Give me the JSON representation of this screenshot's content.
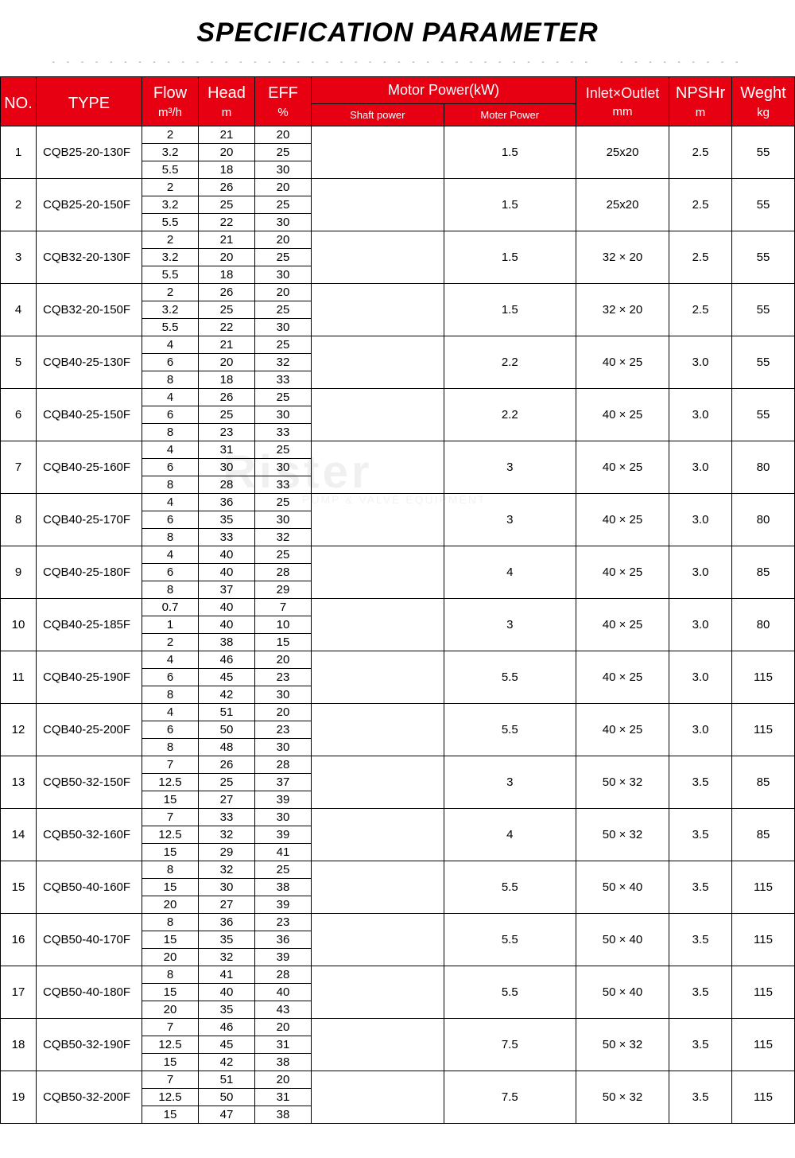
{
  "title": "SPECIFICATION PARAMETER",
  "headers": {
    "no": "NO.",
    "type": "TYPE",
    "flow_main": "Flow",
    "flow_unit": "m³/h",
    "head_main": "Head",
    "head_unit": "m",
    "eff_main": "EFF",
    "eff_unit": "%",
    "motor_main": "Motor Power(kW)",
    "shaft_sub": "Shaft power",
    "mpow_sub": "Moter Power",
    "inout_main": "Inlet×Outlet",
    "inout_unit": "mm",
    "npshr_main": "NPSHr",
    "npshr_unit": "m",
    "weight_main": "Weght",
    "weight_unit": "kg"
  },
  "rows": [
    {
      "no": "1",
      "type": "CQB25-20-130F",
      "flow": [
        "2",
        "3.2",
        "5.5"
      ],
      "head": [
        "21",
        "20",
        "18"
      ],
      "eff": [
        "20",
        "25",
        "30"
      ],
      "shaft": "",
      "mpow": "1.5",
      "inout": "25x20",
      "npshr": "2.5",
      "weight": "55"
    },
    {
      "no": "2",
      "type": "CQB25-20-150F",
      "flow": [
        "2",
        "3.2",
        "5.5"
      ],
      "head": [
        "26",
        "25",
        "22"
      ],
      "eff": [
        "20",
        "25",
        "30"
      ],
      "shaft": "",
      "mpow": "1.5",
      "inout": "25x20",
      "npshr": "2.5",
      "weight": "55"
    },
    {
      "no": "3",
      "type": "CQB32-20-130F",
      "flow": [
        "2",
        "3.2",
        "5.5"
      ],
      "head": [
        "21",
        "20",
        "18"
      ],
      "eff": [
        "20",
        "25",
        "30"
      ],
      "shaft": "",
      "mpow": "1.5",
      "inout": "32 × 20",
      "npshr": "2.5",
      "weight": "55"
    },
    {
      "no": "4",
      "type": "CQB32-20-150F",
      "flow": [
        "2",
        "3.2",
        "5.5"
      ],
      "head": [
        "26",
        "25",
        "22"
      ],
      "eff": [
        "20",
        "25",
        "30"
      ],
      "shaft": "",
      "mpow": "1.5",
      "inout": "32 × 20",
      "npshr": "2.5",
      "weight": "55"
    },
    {
      "no": "5",
      "type": "CQB40-25-130F",
      "flow": [
        "4",
        "6",
        "8"
      ],
      "head": [
        "21",
        "20",
        "18"
      ],
      "eff": [
        "25",
        "32",
        "33"
      ],
      "shaft": "",
      "mpow": "2.2",
      "inout": "40 × 25",
      "npshr": "3.0",
      "weight": "55"
    },
    {
      "no": "6",
      "type": "CQB40-25-150F",
      "flow": [
        "4",
        "6",
        "8"
      ],
      "head": [
        "26",
        "25",
        "23"
      ],
      "eff": [
        "25",
        "30",
        "33"
      ],
      "shaft": "",
      "mpow": "2.2",
      "inout": "40 × 25",
      "npshr": "3.0",
      "weight": "55"
    },
    {
      "no": "7",
      "type": "CQB40-25-160F",
      "flow": [
        "4",
        "6",
        "8"
      ],
      "head": [
        "31",
        "30",
        "28"
      ],
      "eff": [
        "25",
        "30",
        "33"
      ],
      "shaft": "",
      "mpow": "3",
      "inout": "40 × 25",
      "npshr": "3.0",
      "weight": "80"
    },
    {
      "no": "8",
      "type": "CQB40-25-170F",
      "flow": [
        "4",
        "6",
        "8"
      ],
      "head": [
        "36",
        "35",
        "33"
      ],
      "eff": [
        "25",
        "30",
        "32"
      ],
      "shaft": "",
      "mpow": "3",
      "inout": "40 × 25",
      "npshr": "3.0",
      "weight": "80"
    },
    {
      "no": "9",
      "type": "CQB40-25-180F",
      "flow": [
        "4",
        "6",
        "8"
      ],
      "head": [
        "40",
        "40",
        "37"
      ],
      "eff": [
        "25",
        "28",
        "29"
      ],
      "shaft": "",
      "mpow": "4",
      "inout": "40 × 25",
      "npshr": "3.0",
      "weight": "85"
    },
    {
      "no": "10",
      "type": "CQB40-25-185F",
      "flow": [
        "0.7",
        "1",
        "2"
      ],
      "head": [
        "40",
        "40",
        "38"
      ],
      "eff": [
        "7",
        "10",
        "15"
      ],
      "shaft": "",
      "mpow": "3",
      "inout": "40 × 25",
      "npshr": "3.0",
      "weight": "80"
    },
    {
      "no": "11",
      "type": "CQB40-25-190F",
      "flow": [
        "4",
        "6",
        "8"
      ],
      "head": [
        "46",
        "45",
        "42"
      ],
      "eff": [
        "20",
        "23",
        "30"
      ],
      "shaft": "",
      "mpow": "5.5",
      "inout": "40 × 25",
      "npshr": "3.0",
      "weight": "115"
    },
    {
      "no": "12",
      "type": "CQB40-25-200F",
      "flow": [
        "4",
        "6",
        "8"
      ],
      "head": [
        "51",
        "50",
        "48"
      ],
      "eff": [
        "20",
        "23",
        "30"
      ],
      "shaft": "",
      "mpow": "5.5",
      "inout": "40 × 25",
      "npshr": "3.0",
      "weight": "115"
    },
    {
      "no": "13",
      "type": "CQB50-32-150F",
      "flow": [
        "7",
        "12.5",
        "15"
      ],
      "head": [
        "26",
        "25",
        "27"
      ],
      "eff": [
        "28",
        "37",
        "39"
      ],
      "shaft": "",
      "mpow": "3",
      "inout": "50 × 32",
      "npshr": "3.5",
      "weight": "85"
    },
    {
      "no": "14",
      "type": "CQB50-32-160F",
      "flow": [
        "7",
        "12.5",
        "15"
      ],
      "head": [
        "33",
        "32",
        "29"
      ],
      "eff": [
        "30",
        "39",
        "41"
      ],
      "shaft": "",
      "mpow": "4",
      "inout": "50 × 32",
      "npshr": "3.5",
      "weight": "85"
    },
    {
      "no": "15",
      "type": "CQB50-40-160F",
      "flow": [
        "8",
        "15",
        "20"
      ],
      "head": [
        "32",
        "30",
        "27"
      ],
      "eff": [
        "25",
        "38",
        "39"
      ],
      "shaft": "",
      "mpow": "5.5",
      "inout": "50 × 40",
      "npshr": "3.5",
      "weight": "115"
    },
    {
      "no": "16",
      "type": "CQB50-40-170F",
      "flow": [
        "8",
        "15",
        "20"
      ],
      "head": [
        "36",
        "35",
        "32"
      ],
      "eff": [
        "23",
        "36",
        "39"
      ],
      "shaft": "",
      "mpow": "5.5",
      "inout": "50 × 40",
      "npshr": "3.5",
      "weight": "115"
    },
    {
      "no": "17",
      "type": "CQB50-40-180F",
      "flow": [
        "8",
        "15",
        "20"
      ],
      "head": [
        "41",
        "40",
        "35"
      ],
      "eff": [
        "28",
        "40",
        "43"
      ],
      "shaft": "",
      "mpow": "5.5",
      "inout": "50 × 40",
      "npshr": "3.5",
      "weight": "115"
    },
    {
      "no": "18",
      "type": "CQB50-32-190F",
      "flow": [
        "7",
        "12.5",
        "15"
      ],
      "head": [
        "46",
        "45",
        "42"
      ],
      "eff": [
        "20",
        "31",
        "38"
      ],
      "shaft": "",
      "mpow": "7.5",
      "inout": "50 × 32",
      "npshr": "3.5",
      "weight": "115"
    },
    {
      "no": "19",
      "type": "CQB50-32-200F",
      "flow": [
        "7",
        "12.5",
        "15"
      ],
      "head": [
        "51",
        "50",
        "47"
      ],
      "eff": [
        "20",
        "31",
        "38"
      ],
      "shaft": "",
      "mpow": "7.5",
      "inout": "50 × 32",
      "npshr": "3.5",
      "weight": "115"
    }
  ],
  "colors": {
    "header_bg": "#e60012",
    "header_fg": "#ffffff",
    "border": "#000000",
    "text": "#000000",
    "bg": "#ffffff"
  },
  "typography": {
    "title_fontsize": 34,
    "title_style": "italic bold",
    "cell_fontsize": 15,
    "header_main_fontsize": 20,
    "header_unit_fontsize": 15,
    "header_sub_fontsize": 13
  },
  "watermark": {
    "main": "Rister",
    "sub": "PUMP & VALVE EQUIPMENT"
  }
}
